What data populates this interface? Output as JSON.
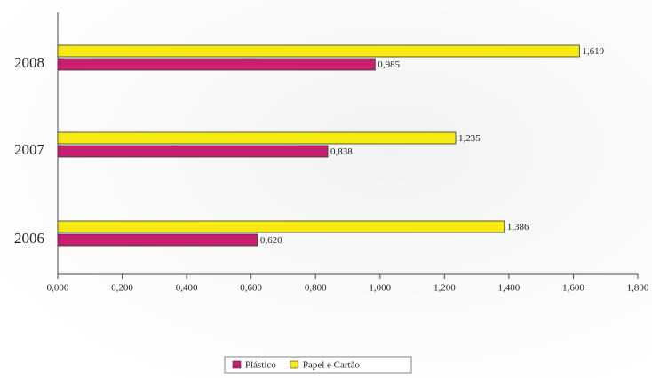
{
  "chart_data": {
    "type": "hbar",
    "categories": [
      "2008",
      "2007",
      "2006"
    ],
    "series": [
      {
        "name": "Plástico",
        "color": "#c8206e",
        "values": [
          0.985,
          0.838,
          0.62
        ],
        "value_labels": [
          "0,985",
          "0,838",
          "0,620"
        ]
      },
      {
        "name": "Papel e Cartão",
        "color": "#f6ea10",
        "values": [
          1.619,
          1.235,
          1.386
        ],
        "value_labels": [
          "1,619",
          "1,235",
          "1,386"
        ]
      }
    ],
    "xlim": [
      0,
      1.8
    ],
    "xticks": [
      {
        "value": 0,
        "label": "0,000"
      },
      {
        "value": 0.2,
        "label": "0,200"
      },
      {
        "value": 0.4,
        "label": "0,400"
      },
      {
        "value": 0.6,
        "label": "0,600"
      },
      {
        "value": 0.8,
        "label": "0,800"
      },
      {
        "value": 1.0,
        "label": "1,000"
      },
      {
        "value": 1.2,
        "label": "1,200"
      },
      {
        "value": 1.4,
        "label": "1,400"
      },
      {
        "value": 1.6,
        "label": "1,600"
      },
      {
        "value": 1.8,
        "label": "1,800"
      }
    ]
  }
}
